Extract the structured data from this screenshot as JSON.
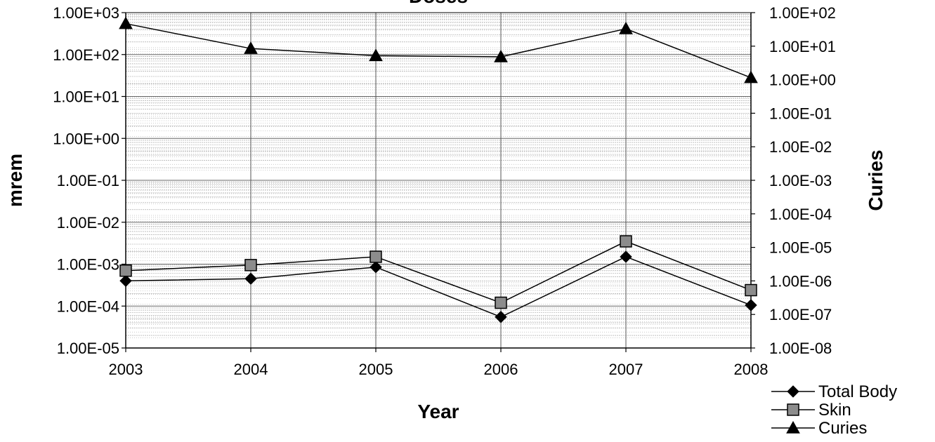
{
  "chart_data": {
    "type": "line",
    "title": "Doses",
    "xlabel": "Year",
    "ylabel": "mrem",
    "y2label": "Curies",
    "categories": [
      "2003",
      "2004",
      "2005",
      "2006",
      "2007",
      "2008"
    ],
    "y_scale": "log",
    "ylim": [
      1e-05,
      1000
    ],
    "y_ticks": [
      1e-05,
      0.0001,
      0.001,
      0.01,
      0.1,
      1,
      10,
      100,
      1000
    ],
    "y_tick_labels": [
      "1.00E-05",
      "1.00E-04",
      "1.00E-03",
      "1.00E-02",
      "1.00E-01",
      "1.00E+00",
      "1.00E+01",
      "1.00E+02",
      "1.00E+03"
    ],
    "y2_scale": "log",
    "y2lim": [
      1e-08,
      100
    ],
    "y2_ticks": [
      1e-08,
      1e-07,
      1e-06,
      1e-05,
      0.0001,
      0.001,
      0.01,
      0.1,
      1,
      10,
      100
    ],
    "y2_tick_labels": [
      "1.00E-08",
      "1.00E-07",
      "1.00E-06",
      "1.00E-05",
      "1.00E-04",
      "1.00E-03",
      "1.00E-02",
      "1.00E-01",
      "1.00E+00",
      "1.00E+01",
      "1.00E+02"
    ],
    "grid": true,
    "legend_position": "bottom-right",
    "series": [
      {
        "name": "Total Body",
        "axis": "left",
        "marker": "diamond",
        "values": [
          0.0004,
          0.00045,
          0.00085,
          5.5e-05,
          0.0015,
          0.000105
        ]
      },
      {
        "name": "Skin",
        "axis": "left",
        "marker": "square",
        "values": [
          0.0007,
          0.00095,
          0.0015,
          0.00012,
          0.0035,
          0.00024
        ]
      },
      {
        "name": "Curies",
        "axis": "right",
        "marker": "triangle",
        "values": [
          47,
          8.5,
          5.2,
          4.8,
          33,
          1.15
        ]
      }
    ],
    "colors": {
      "line": "#000000",
      "diamond_fill": "#000000",
      "square_fill": "#8c8c8c",
      "triangle_fill": "#000000",
      "grid": "#9a9a9a",
      "gridline_vertical": "#555555"
    }
  }
}
